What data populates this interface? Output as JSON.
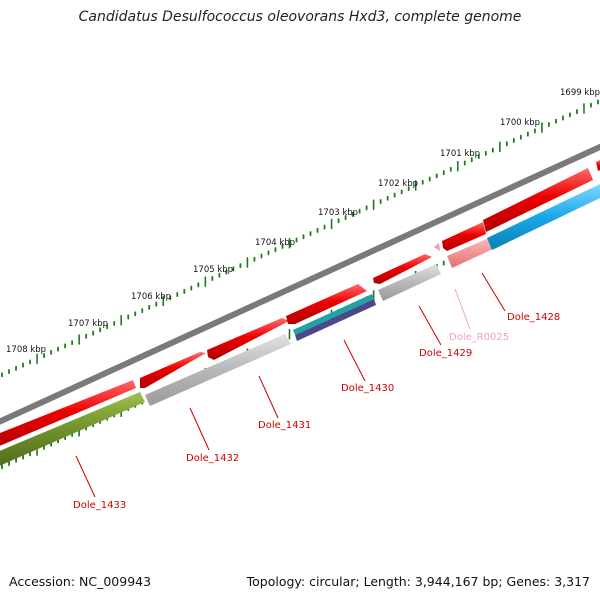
{
  "title": "Candidatus Desulfococcus oleovorans Hxd3, complete genome",
  "footer": {
    "accession": "Accession: NC_009943",
    "summary": "Topology: circular; Length: 3,944,167 bp; Genes: 3,317"
  },
  "colors": {
    "backbone": "#7a7a7a",
    "ticks": "#1e7a1e",
    "forward_gene": "#ee0000",
    "reverse_gene_grey": "#b8b8b8",
    "rrna_pink": "#f08a8a",
    "blue_gene": "#1aa7e6",
    "teal_gene": "#1fa3a3",
    "green_gene": "#6f8f2a",
    "label_red": "#cc0000",
    "label_pink": "#f0a0c0"
  },
  "tick_labels": [
    "1699 kbp",
    "1700 kbp",
    "1701 kbp",
    "1702 kbp",
    "1703 kbp",
    "1704 kbp",
    "1705 kbp",
    "1706 kbp",
    "1707 kbp",
    "1708 kbp"
  ],
  "gene_labels": [
    "Dole_1428",
    "Dole_R0025",
    "Dole_1429",
    "Dole_1430",
    "Dole_1431",
    "Dole_1432",
    "Dole_1433"
  ]
}
